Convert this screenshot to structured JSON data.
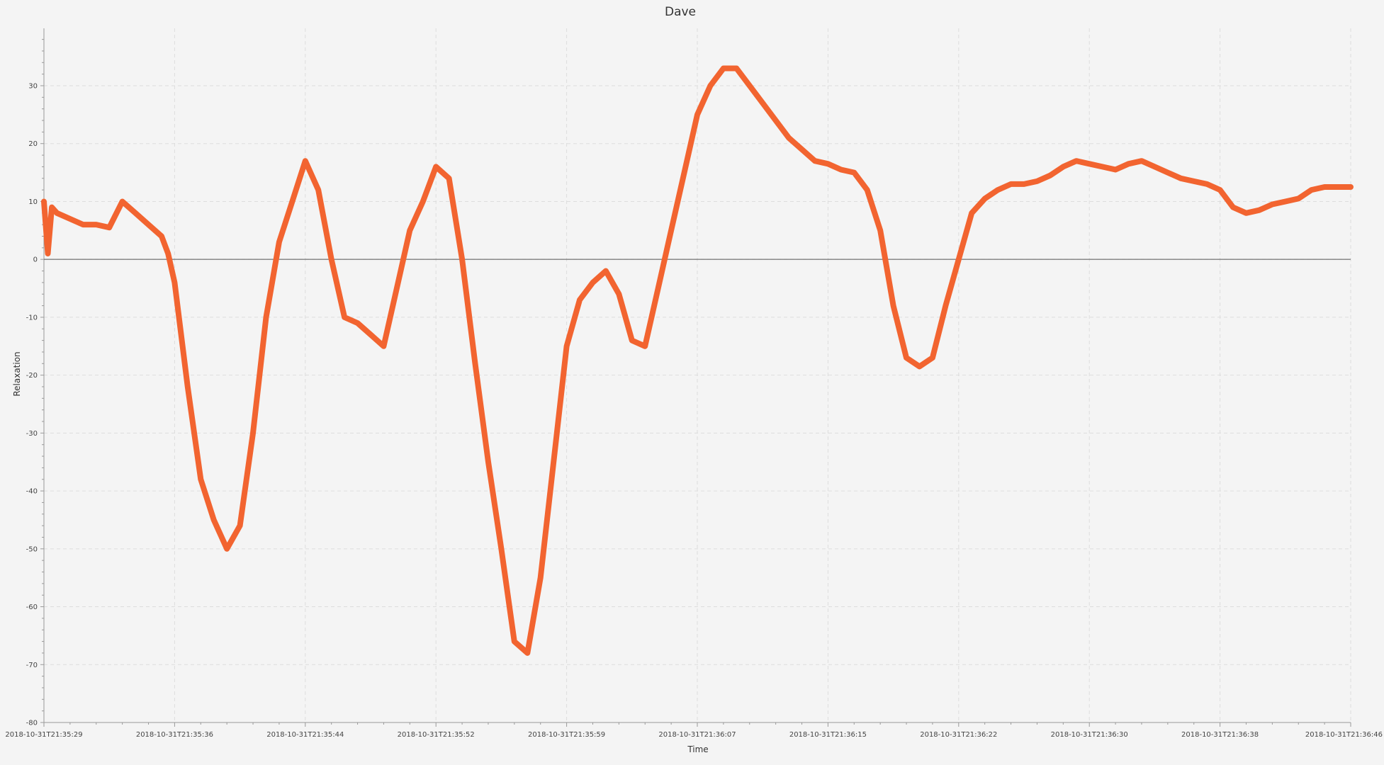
{
  "chart_data": {
    "type": "line",
    "title": "Dave",
    "xlabel": "Time",
    "ylabel": "Relaxation",
    "grid": true,
    "x_tick_labels": [
      "2018-10-31T21:35:29",
      "2018-10-31T21:35:36",
      "2018-10-31T21:35:44",
      "2018-10-31T21:35:52",
      "2018-10-31T21:35:59",
      "2018-10-31T21:36:07",
      "2018-10-31T21:36:15",
      "2018-10-31T21:36:22",
      "2018-10-31T21:36:30",
      "2018-10-31T21:36:38",
      "2018-10-31T21:36:46"
    ],
    "y_ticks": [
      30,
      20,
      10,
      0,
      -10,
      -20,
      -30,
      -40,
      -50,
      -60,
      -70,
      -80
    ],
    "ylim": [
      -80,
      40
    ],
    "zero_line": true,
    "colors": {
      "series": "#f26430",
      "zero_line": "#555555",
      "grid": "#dddddd",
      "axis": "#999999"
    },
    "series": [
      {
        "x": [
          0,
          0.3,
          0.6,
          1,
          2,
          3,
          4,
          5,
          6,
          7,
          8,
          9,
          9.5,
          10,
          11,
          12,
          13,
          14,
          15,
          16,
          17,
          18,
          19,
          20,
          21,
          22,
          23,
          24,
          25,
          26,
          27,
          28,
          29,
          30,
          31,
          32,
          33,
          34,
          35,
          36,
          37,
          38,
          39,
          40,
          41,
          42,
          43,
          44,
          45,
          46,
          47,
          48,
          49,
          50,
          51,
          52,
          53,
          54,
          55,
          56,
          57,
          58,
          59,
          60,
          61,
          62,
          63,
          64,
          65,
          66,
          67,
          68,
          69,
          70,
          71,
          72,
          73,
          74,
          75,
          76,
          77,
          78,
          79,
          80,
          81,
          82,
          83,
          84,
          85,
          86,
          87,
          88,
          89,
          90,
          91,
          92,
          93,
          94,
          95,
          96,
          97,
          98,
          99,
          100
        ],
        "y": [
          10,
          1,
          9,
          8,
          7,
          6,
          6,
          5.5,
          10,
          8,
          6,
          4,
          1,
          -4,
          -22,
          -38,
          -45,
          -50,
          -46,
          -30,
          -10,
          3,
          10,
          17,
          12,
          0,
          -10,
          -11,
          -13,
          -15,
          -5,
          5,
          10,
          16,
          14,
          0,
          -18,
          -35,
          -50,
          -66,
          -68,
          -55,
          -35,
          -15,
          -7,
          -4,
          -2,
          -6,
          -14,
          -15,
          -5,
          5,
          15,
          25,
          30,
          33,
          33,
          30,
          27,
          24,
          21,
          19,
          17,
          16.5,
          15.5,
          15,
          12,
          5,
          -8,
          -17,
          -18.5,
          -17,
          -8,
          0,
          8,
          10.5,
          12,
          13,
          13,
          13.5,
          14.5,
          16,
          17,
          16.5,
          16,
          15.5,
          16.5,
          17,
          16,
          15,
          14,
          13.5,
          13,
          12,
          9,
          8,
          8.5,
          9.5,
          10,
          10.5,
          12,
          12.5,
          12.5,
          12.5
        ]
      }
    ]
  }
}
